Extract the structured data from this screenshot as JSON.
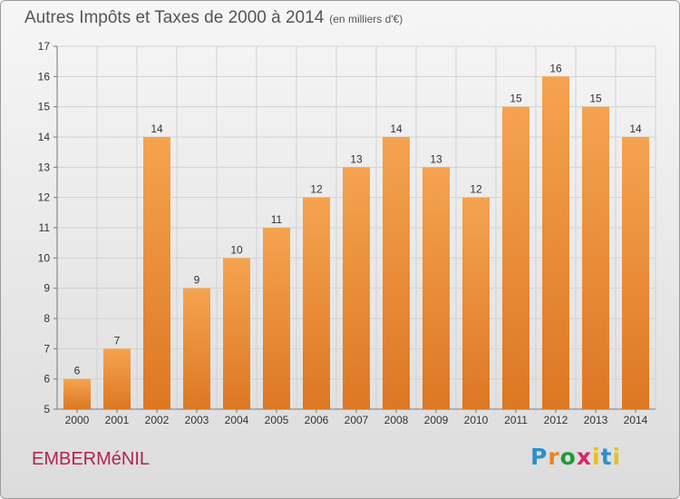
{
  "title": "Autres Impôts et Taxes de 2000 à 2014",
  "subtitle": "(en milliers d'€)",
  "commune": "EMBERMéNIL",
  "logo": {
    "p": "P",
    "r": "r",
    "o": "o",
    "x": "x",
    "i1": "i",
    "t": "t",
    "i2": "i"
  },
  "colors": {
    "bar_top": "#f5a350",
    "bar_bottom": "#dd7722",
    "grid": "#d2d2d2"
  },
  "chart_data": {
    "type": "bar",
    "title": "Autres Impôts et Taxes de 2000 à 2014",
    "subtitle": "(en milliers d'€)",
    "categories": [
      "2000",
      "2001",
      "2002",
      "2003",
      "2004",
      "2005",
      "2006",
      "2007",
      "2008",
      "2009",
      "2010",
      "2011",
      "2012",
      "2013",
      "2014"
    ],
    "values": [
      6,
      7,
      14,
      9,
      10,
      11,
      12,
      13,
      14,
      13,
      12,
      15,
      16,
      15,
      14
    ],
    "ylim": [
      5,
      17
    ],
    "yticks": [
      5,
      6,
      7,
      8,
      9,
      10,
      11,
      12,
      13,
      14,
      15,
      16,
      17
    ],
    "grid": true
  }
}
